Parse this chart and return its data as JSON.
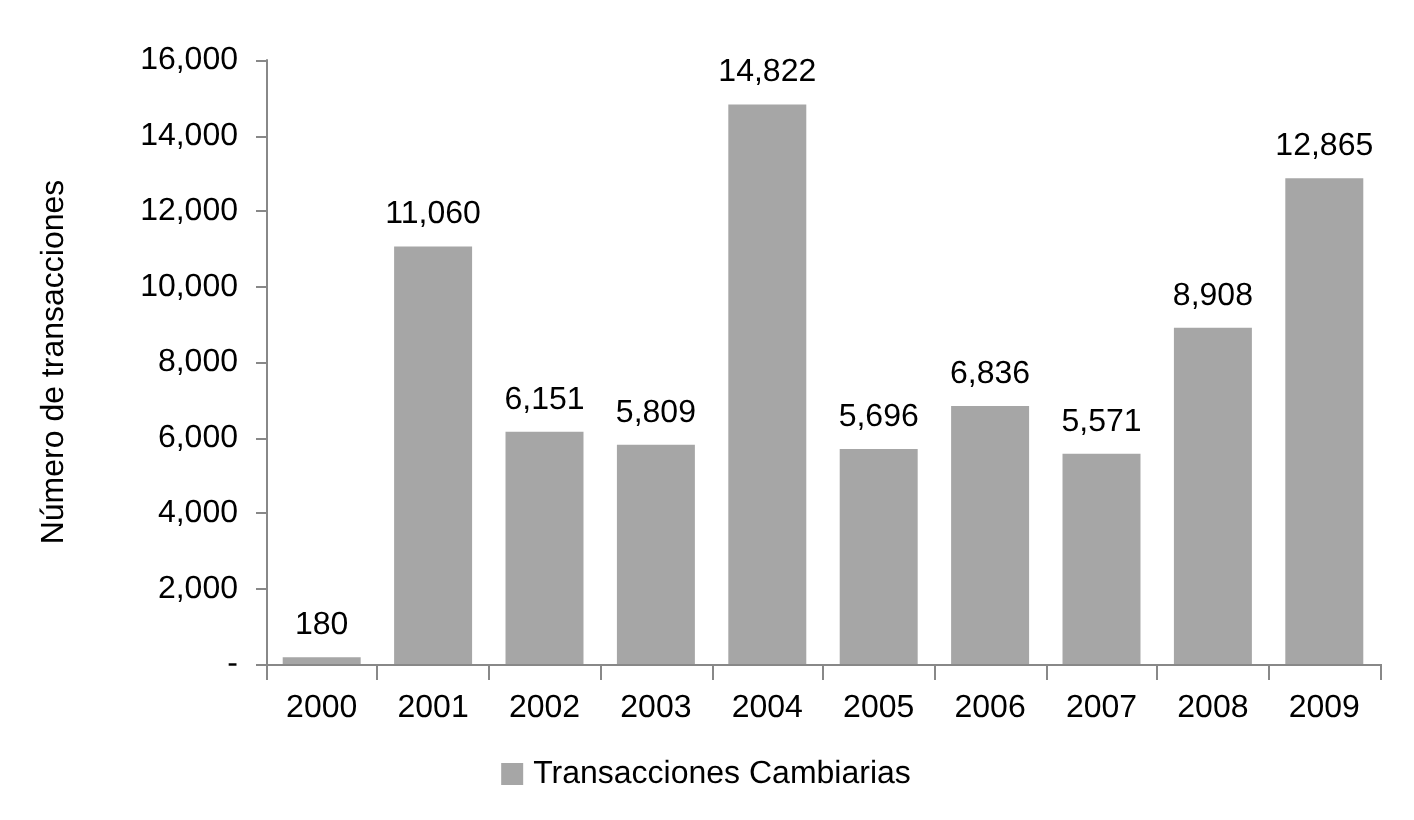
{
  "chart_data": {
    "type": "bar",
    "ylabel": "Número de transacciones",
    "categories": [
      "2000",
      "2001",
      "2002",
      "2003",
      "2004",
      "2005",
      "2006",
      "2007",
      "2008",
      "2009"
    ],
    "series": [
      {
        "name": "Transacciones Cambiarias",
        "color": "#a6a6a6",
        "values": [
          180,
          11060,
          6151,
          5809,
          14822,
          5696,
          6836,
          5571,
          8908,
          12865
        ],
        "value_labels": [
          "180",
          "11,060",
          "6,151",
          "5,809",
          "14,822",
          "5,696",
          "6,836",
          "5,571",
          "8,908",
          "12,865"
        ]
      }
    ],
    "ylim": [
      0,
      16000
    ],
    "yticks": [
      {
        "value": 0,
        "label": "-"
      },
      {
        "value": 2000,
        "label": "2,000"
      },
      {
        "value": 4000,
        "label": "4,000"
      },
      {
        "value": 6000,
        "label": "6,000"
      },
      {
        "value": 8000,
        "label": "8,000"
      },
      {
        "value": 10000,
        "label": "10,000"
      },
      {
        "value": 12000,
        "label": "12,000"
      },
      {
        "value": 14000,
        "label": "14,000"
      },
      {
        "value": 16000,
        "label": "16,000"
      }
    ],
    "grid": false,
    "legend": "bottom"
  }
}
